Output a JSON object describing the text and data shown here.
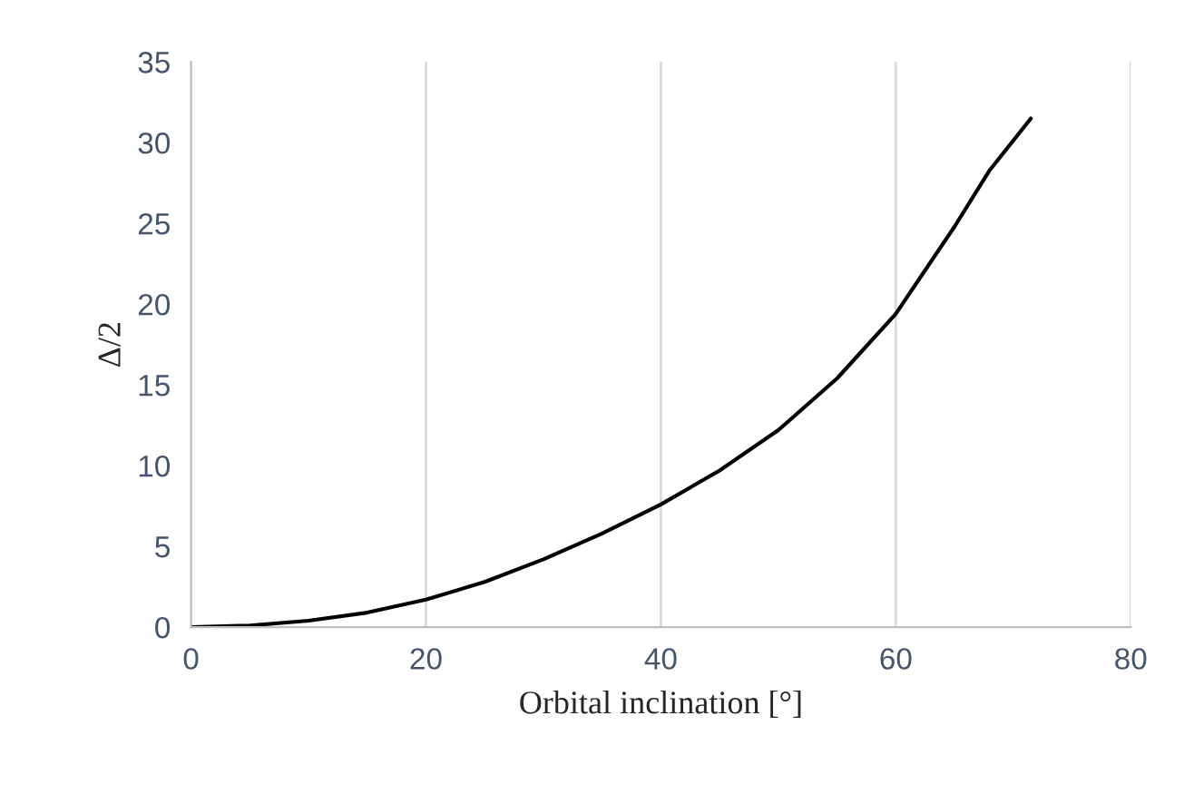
{
  "chart_data": {
    "type": "line",
    "xlabel": "Orbital inclination [°]",
    "ylabel": "Δ/2",
    "x": [
      0,
      5,
      10,
      15,
      20,
      25,
      30,
      35,
      40,
      45,
      50,
      55,
      60,
      65,
      68,
      71.5
    ],
    "series": [
      {
        "color": "#000000",
        "values": [
          0,
          0.1,
          0.4,
          0.9,
          1.7,
          2.8,
          4.2,
          5.8,
          7.6,
          9.7,
          12.2,
          15.4,
          19.4,
          24.8,
          28.3,
          31.5
        ]
      }
    ],
    "xlim": [
      0,
      80
    ],
    "ylim": [
      0,
      35
    ],
    "xticks": [
      0,
      20,
      40,
      60,
      80
    ],
    "yticks": [
      0,
      5,
      10,
      15,
      20,
      25,
      30,
      35
    ],
    "grid": "x",
    "marker": "none",
    "line_style": "solid"
  }
}
